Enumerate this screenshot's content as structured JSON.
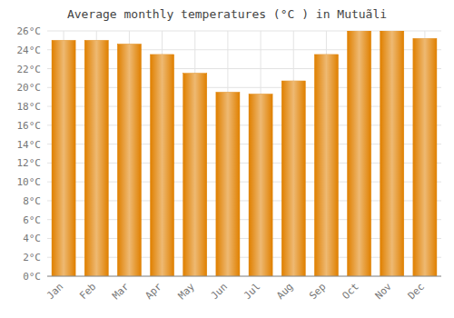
{
  "chart_data": {
    "type": "bar",
    "title": "Average monthly temperatures (°C ) in Mutuãli",
    "categories": [
      "Jan",
      "Feb",
      "Mar",
      "Apr",
      "May",
      "Jun",
      "Jul",
      "Aug",
      "Sep",
      "Oct",
      "Nov",
      "Dec"
    ],
    "values": [
      25.0,
      25.0,
      24.6,
      23.5,
      21.5,
      19.5,
      19.3,
      20.7,
      23.5,
      26.0,
      26.0,
      25.2
    ],
    "color": "#E08000",
    "ylim": [
      0,
      26
    ],
    "yticks": [
      {
        "value": 0,
        "label": "0°C"
      },
      {
        "value": 2,
        "label": "2°C"
      },
      {
        "value": 4,
        "label": "4°C"
      },
      {
        "value": 6,
        "label": "6°C"
      },
      {
        "value": 8,
        "label": "8°C"
      },
      {
        "value": 10,
        "label": "10°C"
      },
      {
        "value": 12,
        "label": "12°C"
      },
      {
        "value": 14,
        "label": "14°C"
      },
      {
        "value": 16,
        "label": "16°C"
      },
      {
        "value": 18,
        "label": "18°C"
      },
      {
        "value": 20,
        "label": "20°C"
      },
      {
        "value": 22,
        "label": "22°C"
      },
      {
        "value": 24,
        "label": "24°C"
      },
      {
        "value": 26,
        "label": "26°C"
      }
    ],
    "grid": true
  }
}
